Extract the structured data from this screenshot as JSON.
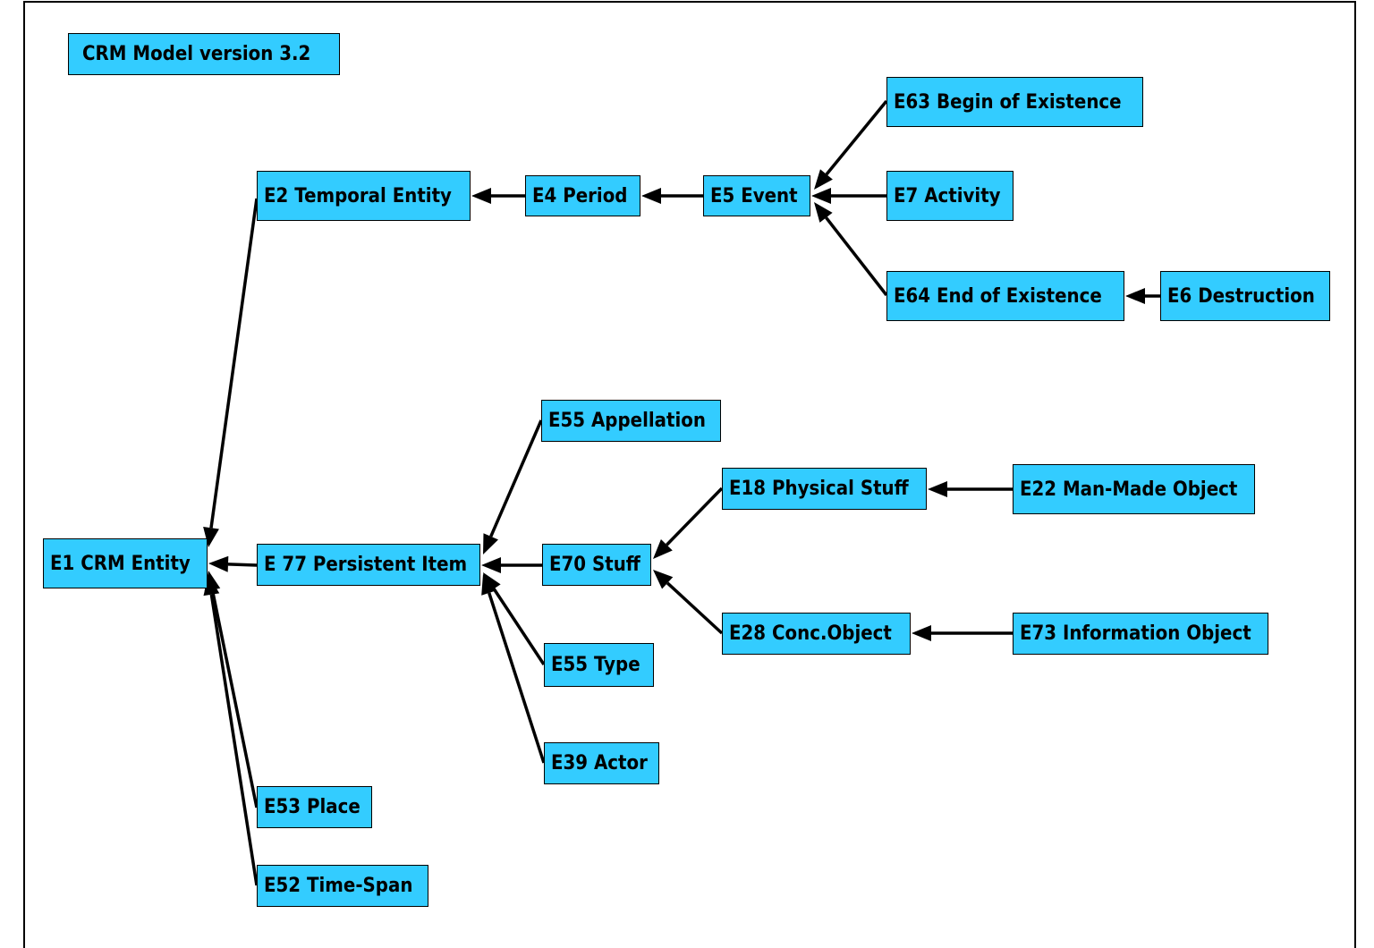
{
  "title": "CRM Model version 3.2",
  "colors": {
    "node_fill": "#33ccff",
    "node_border": "#000000",
    "edge": "#000000"
  },
  "nodes": [
    {
      "id": "E1",
      "label": "E1 CRM Entity"
    },
    {
      "id": "E2",
      "label": "E2 Temporal Entity"
    },
    {
      "id": "E4",
      "label": "E4 Period"
    },
    {
      "id": "E5",
      "label": "E5 Event"
    },
    {
      "id": "E63",
      "label": "E63 Begin of Existence"
    },
    {
      "id": "E7",
      "label": "E7 Activity"
    },
    {
      "id": "E64",
      "label": "E64 End of Existence"
    },
    {
      "id": "E6",
      "label": "E6 Destruction"
    },
    {
      "id": "E77",
      "label": "E 77 Persistent Item"
    },
    {
      "id": "E55A",
      "label": "E55 Appellation"
    },
    {
      "id": "E70",
      "label": "E70 Stuff"
    },
    {
      "id": "E55T",
      "label": "E55 Type"
    },
    {
      "id": "E39",
      "label": "E39 Actor"
    },
    {
      "id": "E18",
      "label": "E18 Physical Stuff"
    },
    {
      "id": "E22",
      "label": "E22 Man-Made Object"
    },
    {
      "id": "E28",
      "label": "E28 Conc.Object"
    },
    {
      "id": "E73",
      "label": "E73 Information Object"
    },
    {
      "id": "E53",
      "label": "E53 Place"
    },
    {
      "id": "E52",
      "label": "E52 Time-Span"
    }
  ],
  "edges": [
    {
      "from": "E2",
      "to": "E1"
    },
    {
      "from": "E77",
      "to": "E1"
    },
    {
      "from": "E53",
      "to": "E1"
    },
    {
      "from": "E52",
      "to": "E1"
    },
    {
      "from": "E4",
      "to": "E2"
    },
    {
      "from": "E5",
      "to": "E4"
    },
    {
      "from": "E63",
      "to": "E5"
    },
    {
      "from": "E7",
      "to": "E5"
    },
    {
      "from": "E64",
      "to": "E5"
    },
    {
      "from": "E6",
      "to": "E64"
    },
    {
      "from": "E55A",
      "to": "E77"
    },
    {
      "from": "E70",
      "to": "E77"
    },
    {
      "from": "E55T",
      "to": "E77"
    },
    {
      "from": "E39",
      "to": "E77"
    },
    {
      "from": "E18",
      "to": "E70"
    },
    {
      "from": "E28",
      "to": "E70"
    },
    {
      "from": "E22",
      "to": "E18"
    },
    {
      "from": "E73",
      "to": "E28"
    }
  ]
}
